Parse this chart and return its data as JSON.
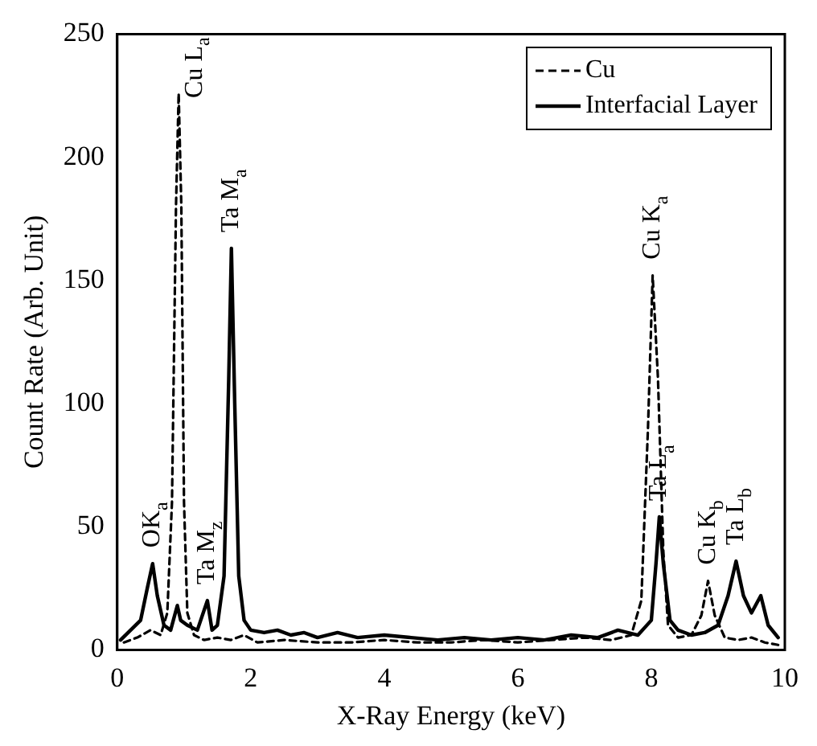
{
  "chart_data": {
    "type": "line",
    "xlabel": "X-Ray Energy (keV)",
    "ylabel": "Count Rate (Arb. Unit)",
    "xlim": [
      0,
      10
    ],
    "xticks": [
      0,
      2,
      4,
      6,
      8,
      10
    ],
    "ylim": [
      0,
      250
    ],
    "yticks": [
      0,
      50,
      100,
      150,
      200,
      250
    ],
    "grid": false,
    "legend": "top right",
    "marker": "none",
    "series": [
      {
        "name": "Cu",
        "color": "#000000",
        "line_style": "dashed",
        "x": [
          0.1,
          0.3,
          0.5,
          0.65,
          0.75,
          0.82,
          0.88,
          0.92,
          0.96,
          1.0,
          1.05,
          1.15,
          1.3,
          1.5,
          1.7,
          1.9,
          2.1,
          2.5,
          3,
          3.5,
          4,
          4.5,
          5,
          5.5,
          6,
          6.5,
          7,
          7.4,
          7.7,
          7.85,
          7.95,
          8.02,
          8.1,
          8.18,
          8.25,
          8.4,
          8.6,
          8.75,
          8.85,
          8.95,
          9.1,
          9.3,
          9.5,
          9.7,
          9.9
        ],
        "values": [
          3,
          5,
          8,
          6,
          15,
          60,
          180,
          226,
          180,
          60,
          15,
          6,
          4,
          5,
          4,
          6,
          3,
          4,
          3,
          3,
          4,
          3,
          3,
          4,
          3,
          4,
          5,
          4,
          6,
          20,
          90,
          152,
          110,
          40,
          10,
          5,
          6,
          14,
          28,
          14,
          5,
          4,
          5,
          3,
          2
        ]
      },
      {
        "name": "Interfacial Layer",
        "color": "#000000",
        "line_style": "solid",
        "x": [
          0.05,
          0.2,
          0.35,
          0.45,
          0.53,
          0.6,
          0.7,
          0.8,
          0.9,
          0.95,
          1.05,
          1.2,
          1.35,
          1.42,
          1.5,
          1.6,
          1.67,
          1.71,
          1.76,
          1.82,
          1.9,
          2.0,
          2.2,
          2.4,
          2.6,
          2.8,
          3,
          3.3,
          3.6,
          4,
          4.4,
          4.8,
          5.2,
          5.6,
          6,
          6.4,
          6.8,
          7.2,
          7.5,
          7.8,
          8.0,
          8.07,
          8.12,
          8.18,
          8.28,
          8.4,
          8.6,
          8.8,
          9.0,
          9.15,
          9.27,
          9.38,
          9.5,
          9.64,
          9.75,
          9.9
        ],
        "values": [
          4,
          8,
          12,
          25,
          35,
          22,
          10,
          8,
          18,
          12,
          10,
          8,
          20,
          8,
          10,
          30,
          110,
          163,
          100,
          30,
          12,
          8,
          7,
          8,
          6,
          7,
          5,
          7,
          5,
          6,
          5,
          4,
          5,
          4,
          5,
          4,
          6,
          5,
          8,
          6,
          12,
          35,
          54,
          35,
          12,
          8,
          6,
          7,
          10,
          22,
          36,
          22,
          15,
          22,
          10,
          5
        ]
      }
    ],
    "annotations": [
      {
        "text": "OK$_{a}$",
        "x": 0.53,
        "y": 35
      },
      {
        "text": "Cu L$_{a}$",
        "x": 0.92,
        "y": 226
      },
      {
        "text": "Ta M$_{z}$",
        "x": 1.35,
        "y": 20
      },
      {
        "text": "Ta M$_{a}$",
        "x": 1.71,
        "y": 163
      },
      {
        "text": "Cu K$_{a}$",
        "x": 8.02,
        "y": 152
      },
      {
        "text": "Ta L$_{a}$",
        "x": 8.12,
        "y": 54
      },
      {
        "text": "Cu K$_{b}$",
        "x": 8.85,
        "y": 28
      },
      {
        "text": "Ta L$_{b}$",
        "x": 9.27,
        "y": 36
      }
    ]
  }
}
